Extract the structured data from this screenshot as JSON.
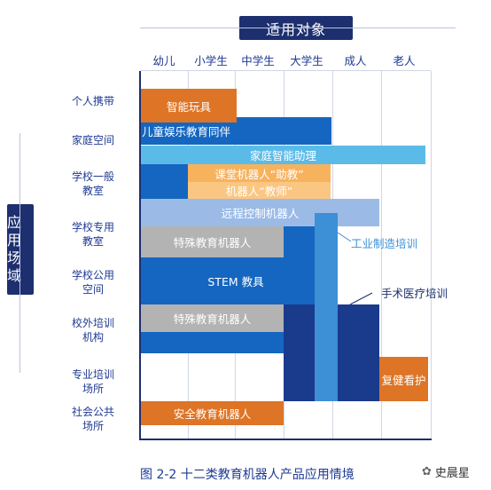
{
  "header": {
    "title": "适用对象"
  },
  "side": {
    "title_line1": "应用",
    "title_line2": "场域"
  },
  "columns": [
    "幼儿",
    "小学生",
    "中学生",
    "大学生",
    "成人",
    "老人"
  ],
  "rows": [
    {
      "line1": "个人携带",
      "line2": ""
    },
    {
      "line1": "家庭空间",
      "line2": ""
    },
    {
      "line1": "学校一般",
      "line2": "教室"
    },
    {
      "line1": "学校专用",
      "line2": "教室"
    },
    {
      "line1": "学校公用",
      "line2": "空间"
    },
    {
      "line1": "校外培训",
      "line2": "机构"
    },
    {
      "line1": "专业培训",
      "line2": "场所"
    },
    {
      "line1": "社会公共",
      "line2": "场所"
    }
  ],
  "bars": {
    "smart_toy": "智能玩具",
    "child_companion": "儿童娱乐教育同伴",
    "home_assistant": "家庭智能助理",
    "classroom_assistant": "课堂机器人“助教”",
    "robot_teacher": "机器人“教师”",
    "remote_control": "远程控制机器人",
    "special_edu_1": "特殊教育机器人",
    "stem": "STEM 教具",
    "special_edu_2": "特殊教育机器人",
    "elder_care": "复健看护",
    "safety_edu": "安全教育机器人"
  },
  "callouts": {
    "industrial": "工业制造培训",
    "surgery": "手术医疗培训"
  },
  "caption": "图 2-2  十二类教育机器人产品应用情境",
  "watermark": "史晨星",
  "colors": {
    "navy": "#1d2f6f",
    "dark_blue": "#1a3a8c",
    "blue": "#1566c0",
    "mid_blue": "#3d8fd6",
    "light_blue": "#5bbbe8",
    "pale_blue": "#9bbbe6",
    "orange": "#de7425",
    "light_orange": "#f7b25e",
    "gray": "#b3b3b3"
  }
}
